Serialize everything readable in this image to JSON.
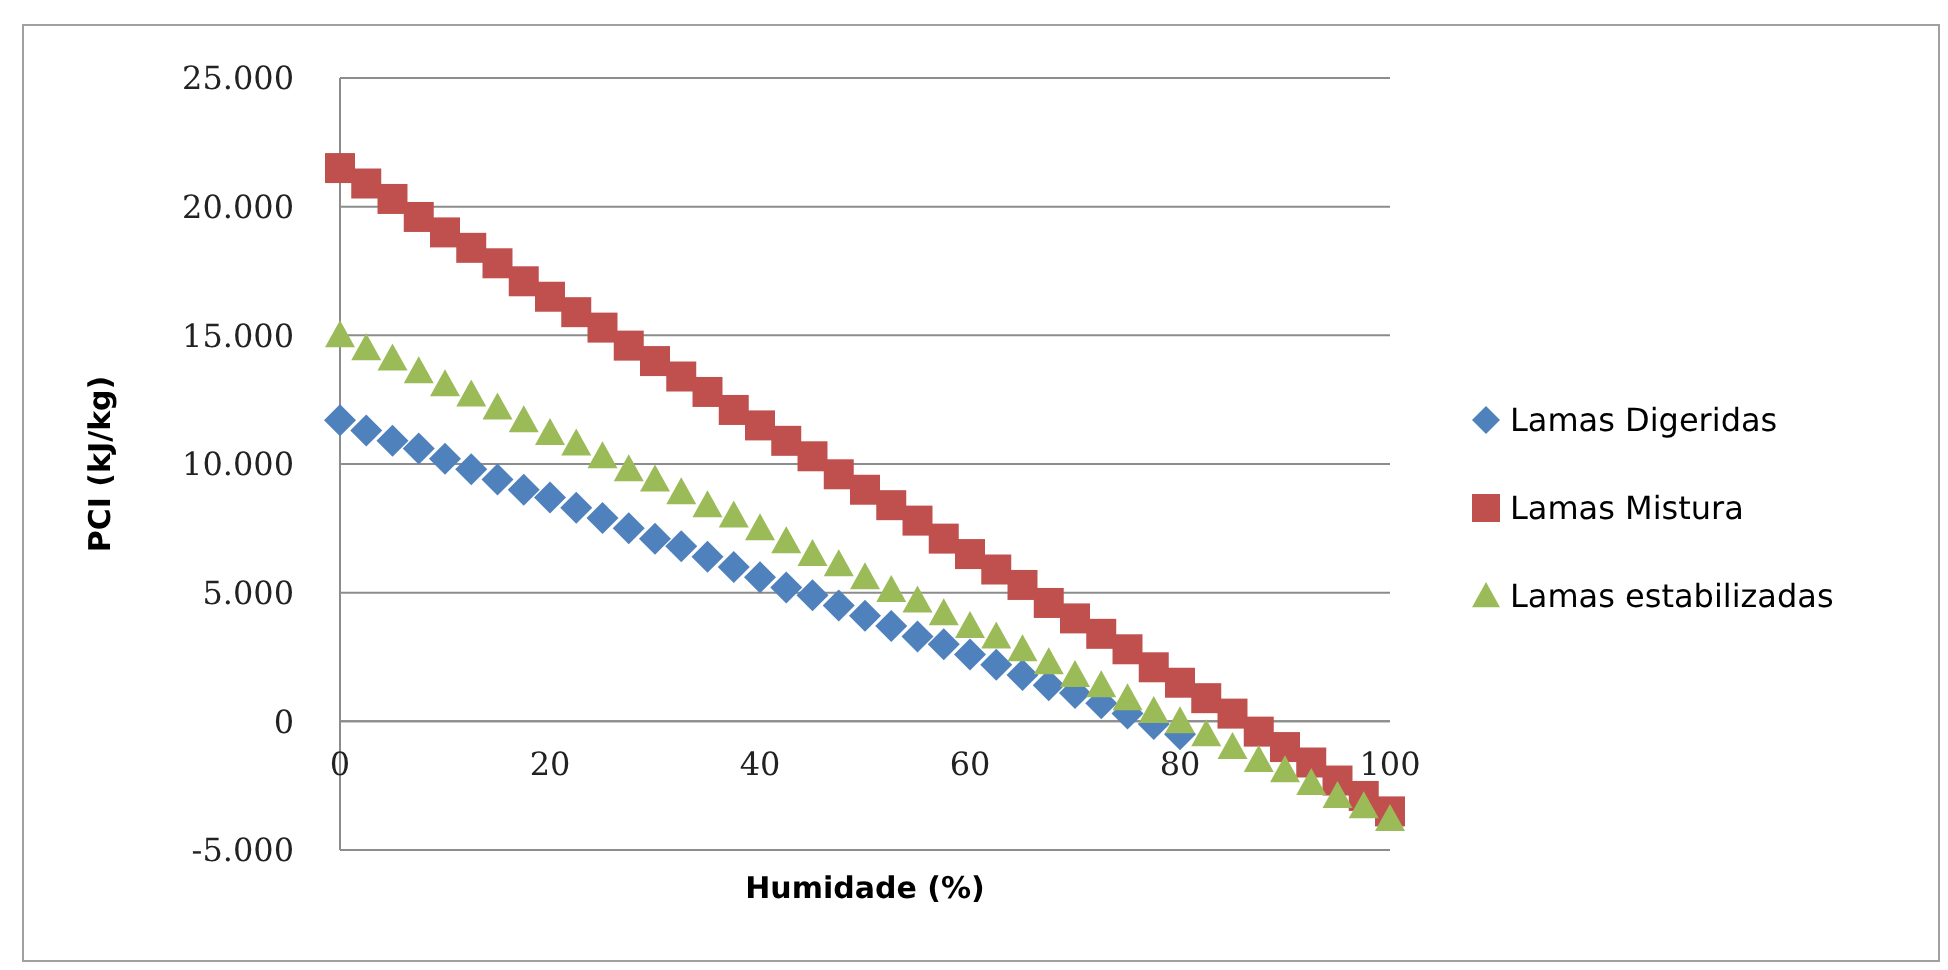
{
  "chart_data": {
    "type": "scatter",
    "xlabel": "Humidade (%)",
    "ylabel": "PCI (kJ/kg)",
    "x": [
      0,
      2.5,
      5,
      7.5,
      10,
      12.5,
      15,
      17.5,
      20,
      22.5,
      25,
      27.5,
      30,
      32.5,
      35,
      37.5,
      40,
      42.5,
      45,
      47.5,
      50,
      52.5,
      55,
      57.5,
      60,
      62.5,
      65,
      67.5,
      70,
      72.5,
      75,
      77.5,
      80,
      82.5,
      85,
      87.5,
      90,
      92.5,
      95,
      97.5,
      100
    ],
    "series": [
      {
        "name": "Lamas Digeridas",
        "color": "#4f81bd",
        "marker": "diamond",
        "values": [
          11700,
          11300,
          10900,
          10600,
          10200,
          9800,
          9400,
          9000,
          8700,
          8300,
          7900,
          7500,
          7100,
          6800,
          6400,
          6000,
          5600,
          5200,
          4900,
          4500,
          4100,
          3700,
          3300,
          3000,
          2600,
          2200,
          1800,
          1400,
          1100,
          700,
          300,
          -100,
          -500,
          null,
          null,
          null,
          null,
          null,
          null,
          null,
          null
        ]
      },
      {
        "name": "Lamas Mistura",
        "color": "#c0504d",
        "marker": "square",
        "values": [
          21500,
          20900,
          20300,
          19600,
          19000,
          18400,
          17800,
          17100,
          16500,
          15900,
          15300,
          14600,
          14000,
          13400,
          12800,
          12100,
          11500,
          10900,
          10300,
          9600,
          9000,
          8400,
          7800,
          7100,
          6500,
          5900,
          5300,
          4600,
          4000,
          3400,
          2800,
          2100,
          1500,
          900,
          300,
          -400,
          -1000,
          -1600,
          -2300,
          -2900,
          -3500
        ]
      },
      {
        "name": "Lamas estabilizadas",
        "color": "#9bbb59",
        "marker": "triangle",
        "values": [
          15000,
          14500,
          14100,
          13600,
          13100,
          12700,
          12200,
          11700,
          11200,
          10800,
          10300,
          9800,
          9400,
          8900,
          8400,
          8000,
          7500,
          7000,
          6500,
          6100,
          5600,
          5100,
          4700,
          4200,
          3700,
          3300,
          2800,
          2300,
          1800,
          1400,
          900,
          400,
          0,
          -500,
          -1000,
          -1500,
          -1900,
          -2400,
          -2900,
          -3300,
          -3800
        ]
      }
    ],
    "xlim": [
      0,
      100
    ],
    "xticks": [
      0,
      20,
      40,
      60,
      80,
      100
    ],
    "ylim": [
      -5000,
      25000
    ],
    "yticks": [
      {
        "value": -5000,
        "label": "-5.000"
      },
      {
        "value": 0,
        "label": "0"
      },
      {
        "value": 5000,
        "label": "5.000"
      },
      {
        "value": 10000,
        "label": "10.000"
      },
      {
        "value": 15000,
        "label": "15.000"
      },
      {
        "value": 20000,
        "label": "20.000"
      },
      {
        "value": 25000,
        "label": "25.000"
      }
    ],
    "grid": "y",
    "legend": "right"
  }
}
